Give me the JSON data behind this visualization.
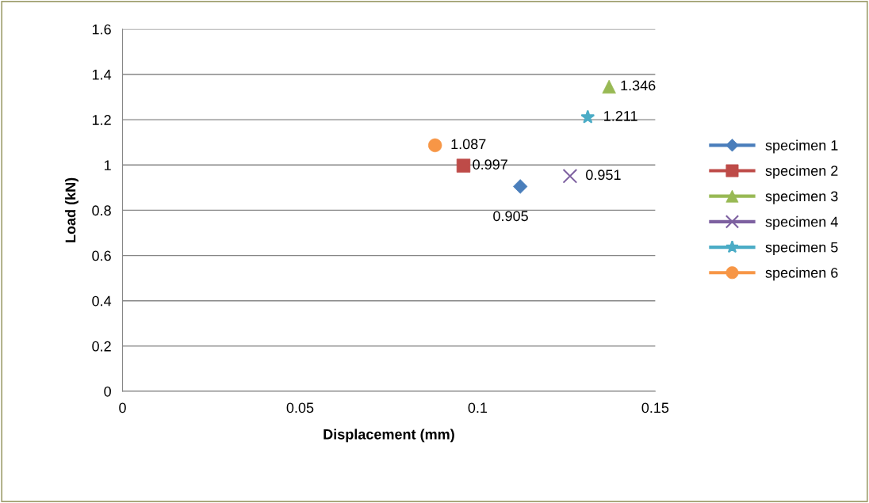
{
  "chart_data": {
    "type": "scatter",
    "xlabel": "Displacement (mm)",
    "ylabel": "Load (kN)",
    "xlim": [
      0,
      0.15
    ],
    "xticks": [
      0,
      0.05,
      0.1,
      0.15
    ],
    "ylim": [
      0,
      1.6
    ],
    "yticks": [
      0,
      0.2,
      0.4,
      0.6,
      0.8,
      1,
      1.2,
      1.4,
      1.6
    ],
    "grid": "y",
    "legend": "right",
    "data_labels": true,
    "series": [
      {
        "name": "specimen 1",
        "color": "#4a7ebb",
        "marker": "diamond",
        "x": [
          0.112
        ],
        "values": [
          0.905
        ]
      },
      {
        "name": "specimen 2",
        "color": "#be4b48",
        "marker": "square",
        "x": [
          0.096
        ],
        "values": [
          0.997
        ]
      },
      {
        "name": "specimen 3",
        "color": "#98b954",
        "marker": "triangle",
        "x": [
          0.137
        ],
        "values": [
          1.346
        ]
      },
      {
        "name": "specimen 4",
        "color": "#7d60a0",
        "marker": "cross",
        "x": [
          0.126
        ],
        "values": [
          0.951
        ]
      },
      {
        "name": "specimen 5",
        "color": "#4bacc6",
        "marker": "star",
        "x": [
          0.131
        ],
        "values": [
          1.211
        ]
      },
      {
        "name": "specimen 6",
        "color": "#f79646",
        "marker": "circle",
        "x": [
          0.088
        ],
        "values": [
          1.087
        ]
      }
    ]
  }
}
